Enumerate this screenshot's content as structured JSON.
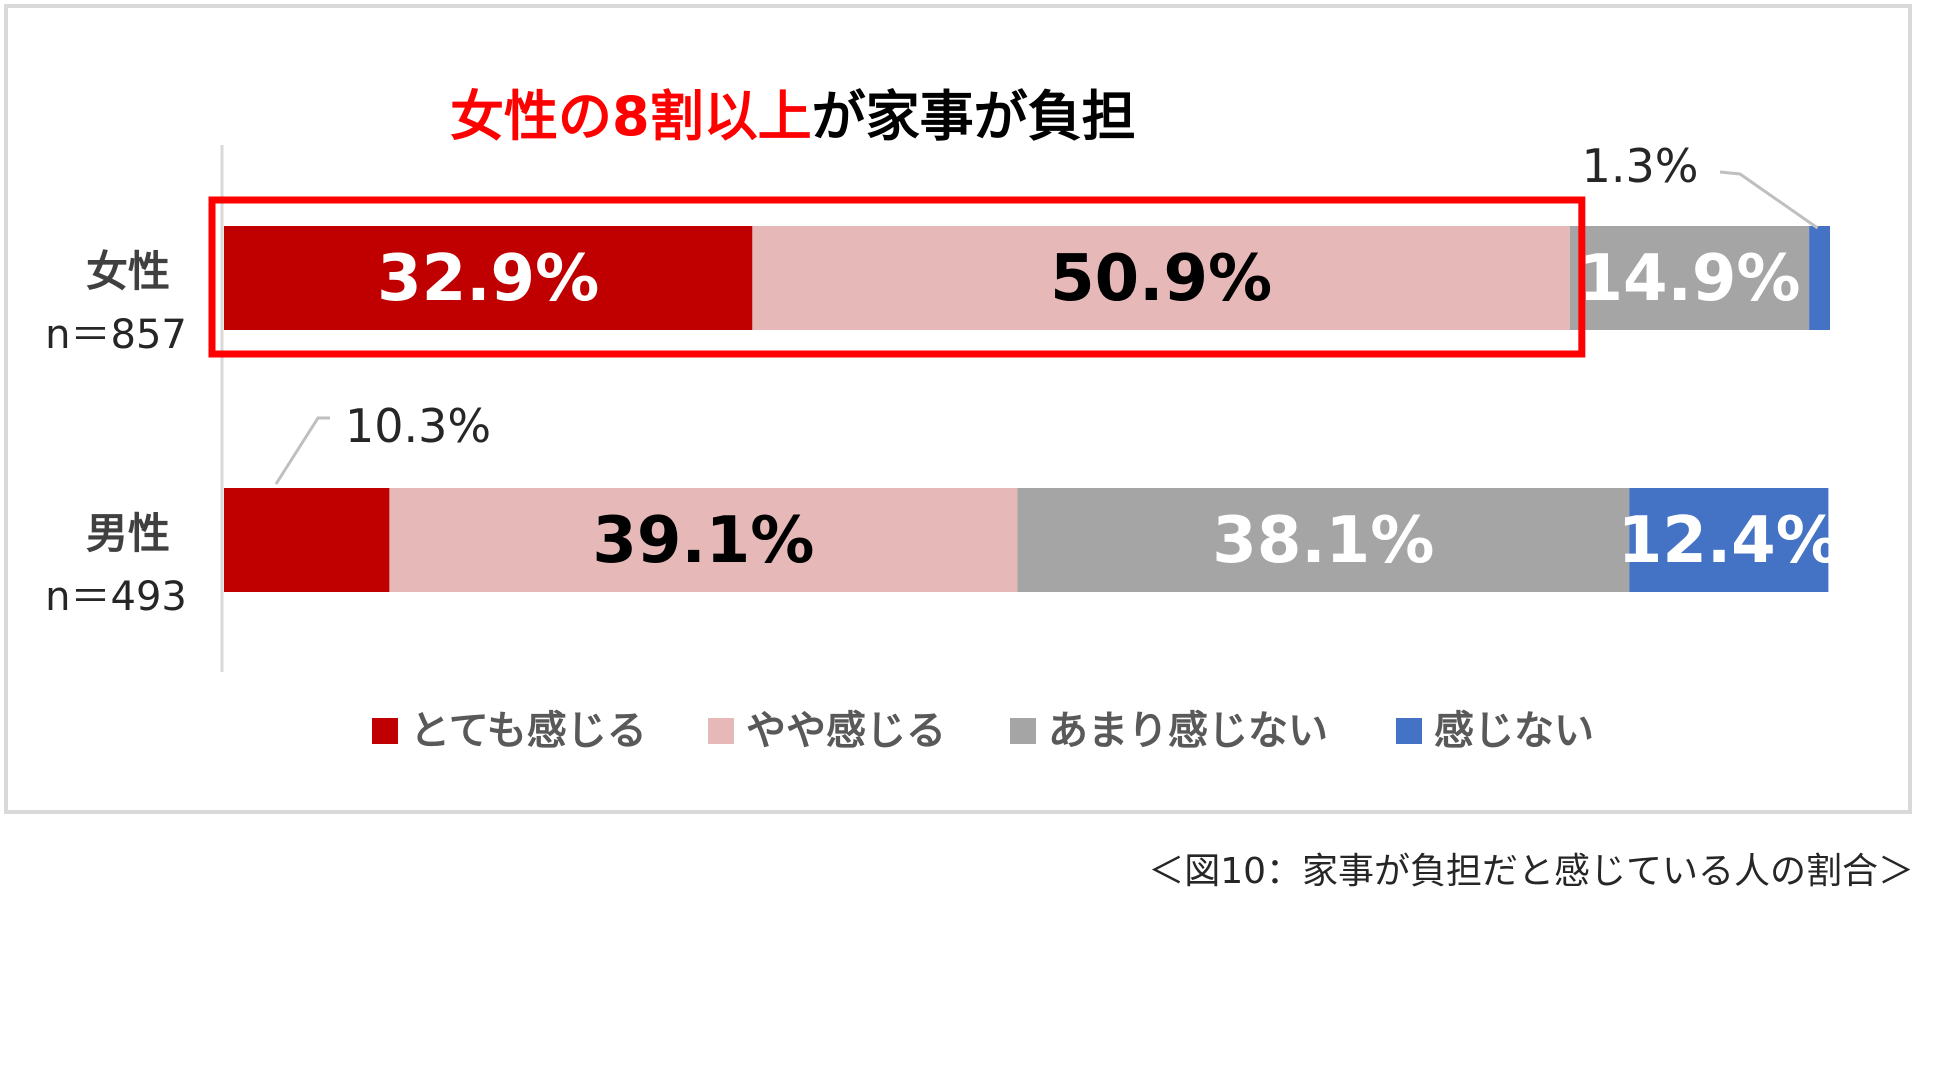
{
  "chart_data": {
    "type": "bar",
    "orientation": "horizontal-stacked-100",
    "title_highlight": "女性の8割以上",
    "title_rest": "が家事が負担",
    "categories": [
      {
        "label": "女性",
        "sub": "n＝857"
      },
      {
        "label": "男性",
        "sub": "n＝493"
      }
    ],
    "series": [
      {
        "name": "とても感じる",
        "color": "#c00000",
        "values": [
          32.9,
          10.3
        ]
      },
      {
        "name": "やや感じる",
        "color": "#e6b9b8",
        "values": [
          50.9,
          39.1
        ]
      },
      {
        "name": "あまり感じない",
        "color": "#a5a5a5",
        "values": [
          14.9,
          38.1
        ]
      },
      {
        "name": "感じない",
        "color": "#4472c4",
        "values": [
          1.3,
          12.4
        ]
      }
    ],
    "data_labels": [
      [
        "32.9%",
        "50.9%",
        "14.9%",
        "1.3%"
      ],
      [
        "10.3%",
        "39.1%",
        "38.1%",
        "12.4%"
      ]
    ],
    "xlim": [
      0,
      100
    ],
    "legend_position": "bottom",
    "highlight_color": "#ff0000"
  },
  "caption": "＜図10：家事が負担だと感じている人の割合＞"
}
